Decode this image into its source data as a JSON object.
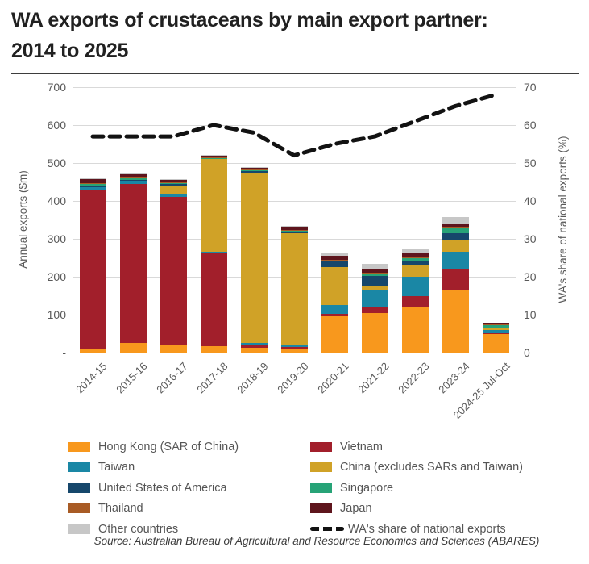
{
  "header": {
    "title_line1": "WA exports of crustaceans by main export partner:",
    "title_line2": "2014 to 2025"
  },
  "axes": {
    "left": {
      "title": "Annual exports ($m)",
      "ticks": [
        "700",
        "600",
        "500",
        "400",
        "300",
        "200",
        "100",
        "-"
      ]
    },
    "right": {
      "title": "WA's share of national exports (%)",
      "ticks": [
        "70",
        "60",
        "50",
        "40",
        "30",
        "20",
        "10",
        "0"
      ]
    }
  },
  "chart_data": {
    "type": "bar",
    "subtype": "stacked-bar-with-line",
    "title": "WA exports of crustaceans by main export partner: 2014 to 2025",
    "xlabel": "",
    "ylabel_left": "Annual exports ($m)",
    "ylabel_right": "WA's share of national exports (%)",
    "ylim_left": [
      0,
      700
    ],
    "ylim_right": [
      0,
      70
    ],
    "grid": "horizontal",
    "legend_position": "bottom",
    "categories": [
      "2014-15",
      "2015-16",
      "2016-17",
      "2017-18",
      "2018-19",
      "2019-20",
      "2020-21",
      "2021-22",
      "2022-23",
      "2023-24",
      "2024-25 Jul-Oct"
    ],
    "series": [
      {
        "key": "hong_kong",
        "name": "Hong Kong (SAR of China)",
        "color": "#F8981D",
        "values": [
          10,
          25,
          20,
          18,
          12,
          10,
          95,
          105,
          120,
          165,
          50
        ]
      },
      {
        "key": "vietnam",
        "name": "Vietnam",
        "color": "#A21F2B",
        "values": [
          418,
          420,
          390,
          244,
          8,
          4,
          8,
          15,
          30,
          57,
          2
        ]
      },
      {
        "key": "taiwan",
        "name": "Taiwan",
        "color": "#1A87A5",
        "values": [
          8,
          8,
          6,
          4,
          5,
          5,
          22,
          45,
          50,
          45,
          8
        ]
      },
      {
        "key": "china",
        "name": "China (excludes SARs and Taiwan)",
        "color": "#D0A227",
        "values": [
          0,
          0,
          25,
          245,
          450,
          295,
          100,
          12,
          30,
          30,
          4
        ]
      },
      {
        "key": "usa",
        "name": "United States of America",
        "color": "#16476B",
        "values": [
          4,
          3,
          3,
          0,
          3,
          4,
          16,
          25,
          12,
          18,
          2
        ]
      },
      {
        "key": "singapore",
        "name": "Singapore",
        "color": "#27A377",
        "values": [
          5,
          5,
          4,
          3,
          4,
          4,
          3,
          7,
          8,
          14,
          7
        ]
      },
      {
        "key": "thailand",
        "name": "Thailand",
        "color": "#A85B25",
        "values": [
          2,
          2,
          1,
          1,
          1,
          1,
          1,
          1,
          2,
          2,
          3
        ]
      },
      {
        "key": "japan",
        "name": "Japan",
        "color": "#5E151D",
        "values": [
          11,
          8,
          8,
          5,
          5,
          8,
          10,
          10,
          10,
          10,
          3
        ]
      },
      {
        "key": "other",
        "name": "Other countries",
        "color": "#C7C7C7",
        "values": [
          3,
          2,
          1,
          1,
          2,
          4,
          7,
          15,
          11,
          17,
          0
        ]
      }
    ],
    "line": {
      "key": "wa_share",
      "name": "WA's share of national exports",
      "color": "#121212",
      "axis": "right",
      "dashed": true,
      "values": [
        57,
        57,
        57,
        60,
        58,
        52,
        55,
        57,
        61,
        65,
        68
      ]
    }
  },
  "legend": {
    "entries": [
      {
        "label": "Hong Kong (SAR of China)",
        "series": "hong_kong",
        "type": "patch"
      },
      {
        "label": "Vietnam",
        "series": "vietnam",
        "type": "patch"
      },
      {
        "label": "Taiwan",
        "series": "taiwan",
        "type": "patch"
      },
      {
        "label": "China (excludes SARs and Taiwan)",
        "series": "china",
        "type": "patch"
      },
      {
        "label": "United States of America",
        "series": "usa",
        "type": "patch"
      },
      {
        "label": "Singapore",
        "series": "singapore",
        "type": "patch"
      },
      {
        "label": "Thailand",
        "series": "thailand",
        "type": "patch"
      },
      {
        "label": "Japan",
        "series": "japan",
        "type": "patch"
      },
      {
        "label": "Other countries",
        "series": "other",
        "type": "patch"
      },
      {
        "label": "WA's share of national exports",
        "series": "wa_share",
        "type": "dashed-line"
      }
    ]
  },
  "source": "Source: Australian Bureau of Agricultural and Resource Economics and Sciences (ABARES)"
}
